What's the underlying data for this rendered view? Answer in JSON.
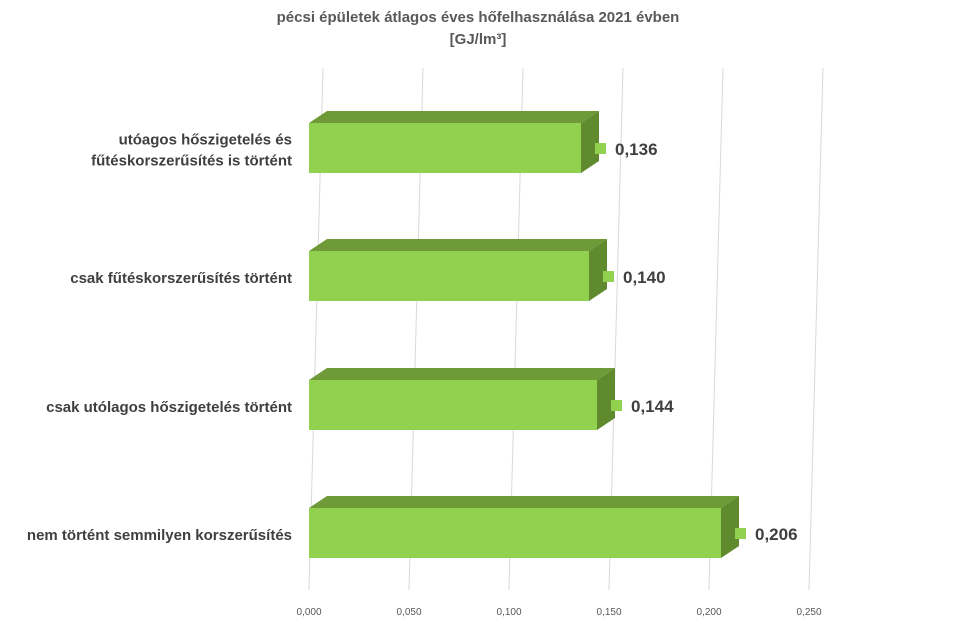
{
  "chart_data": {
    "type": "bar",
    "orientation": "horizontal",
    "title": "pécsi épületek átlagos éves hőfelhasználása 2021 évben",
    "subtitle": "[GJ/lm³]",
    "categories": [
      [
        "utóagos hőszigetelés és",
        "fűtéskorszerűsítés is történt"
      ],
      [
        "csak fűtéskorszerűsítés történt"
      ],
      [
        "csak utólagos hőszigetelés történt"
      ],
      [
        "nem történt semmilyen korszerűsítés"
      ]
    ],
    "values": [
      0.136,
      0.14,
      0.144,
      0.206
    ],
    "data_labels": [
      "0,136",
      "0,140",
      "0,144",
      "0,206"
    ],
    "xlim": [
      0,
      0.25
    ],
    "ticks": [
      0,
      0.05,
      0.1,
      0.15,
      0.2,
      0.25
    ],
    "tick_labels": [
      "0,000",
      "0,050",
      "0,100",
      "0,150",
      "0,200",
      "0,250"
    ],
    "grid": true,
    "legend": "none",
    "colors": {
      "bar_front": "#92d050",
      "bar_top": "#6f9a38",
      "bar_side": "#5f8a2e",
      "gridline": "#d9d9d9",
      "marker": "#92d050"
    }
  }
}
